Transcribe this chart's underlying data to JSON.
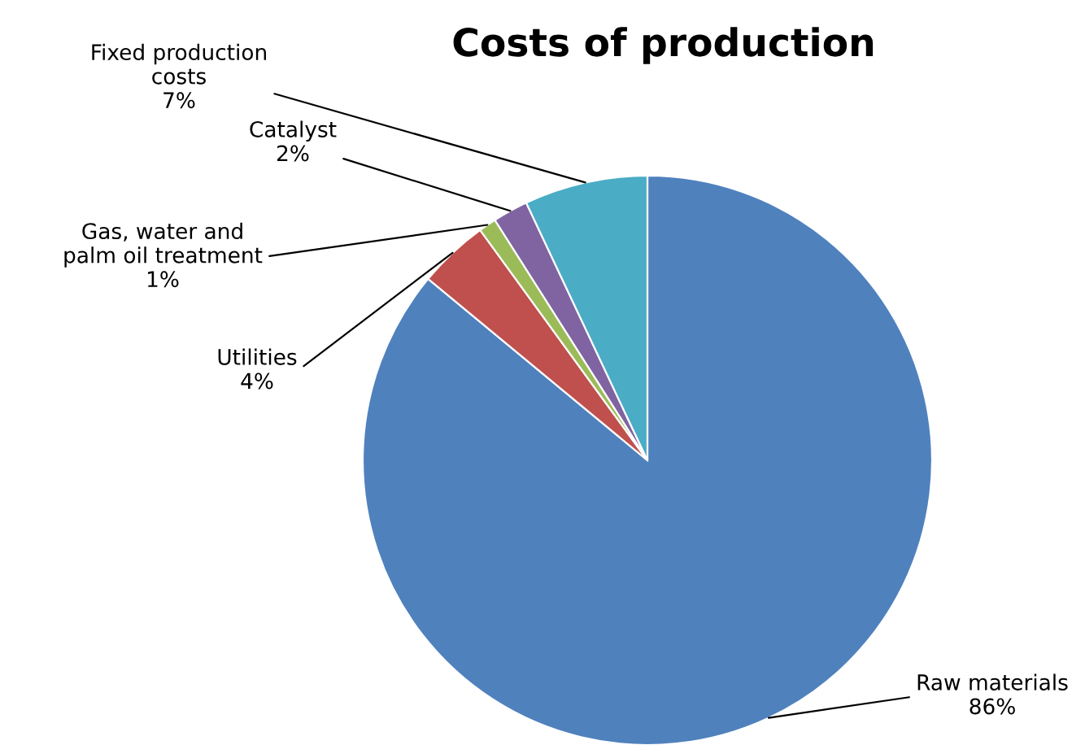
{
  "chart_data": {
    "type": "pie",
    "title": "Costs of production",
    "categories": [
      "Raw materials",
      "Utilities",
      "Gas, water and\npalm oil treatment",
      "Catalyst",
      "Fixed production\ncosts"
    ],
    "values": [
      86,
      4,
      1,
      2,
      7
    ],
    "value_labels": [
      "86%",
      "4%",
      "1%",
      "2%",
      "7%"
    ],
    "colors": [
      "#4f81bd",
      "#c0504d",
      "#9bbb59",
      "#8064a2",
      "#4bacc6"
    ],
    "legend": false
  }
}
